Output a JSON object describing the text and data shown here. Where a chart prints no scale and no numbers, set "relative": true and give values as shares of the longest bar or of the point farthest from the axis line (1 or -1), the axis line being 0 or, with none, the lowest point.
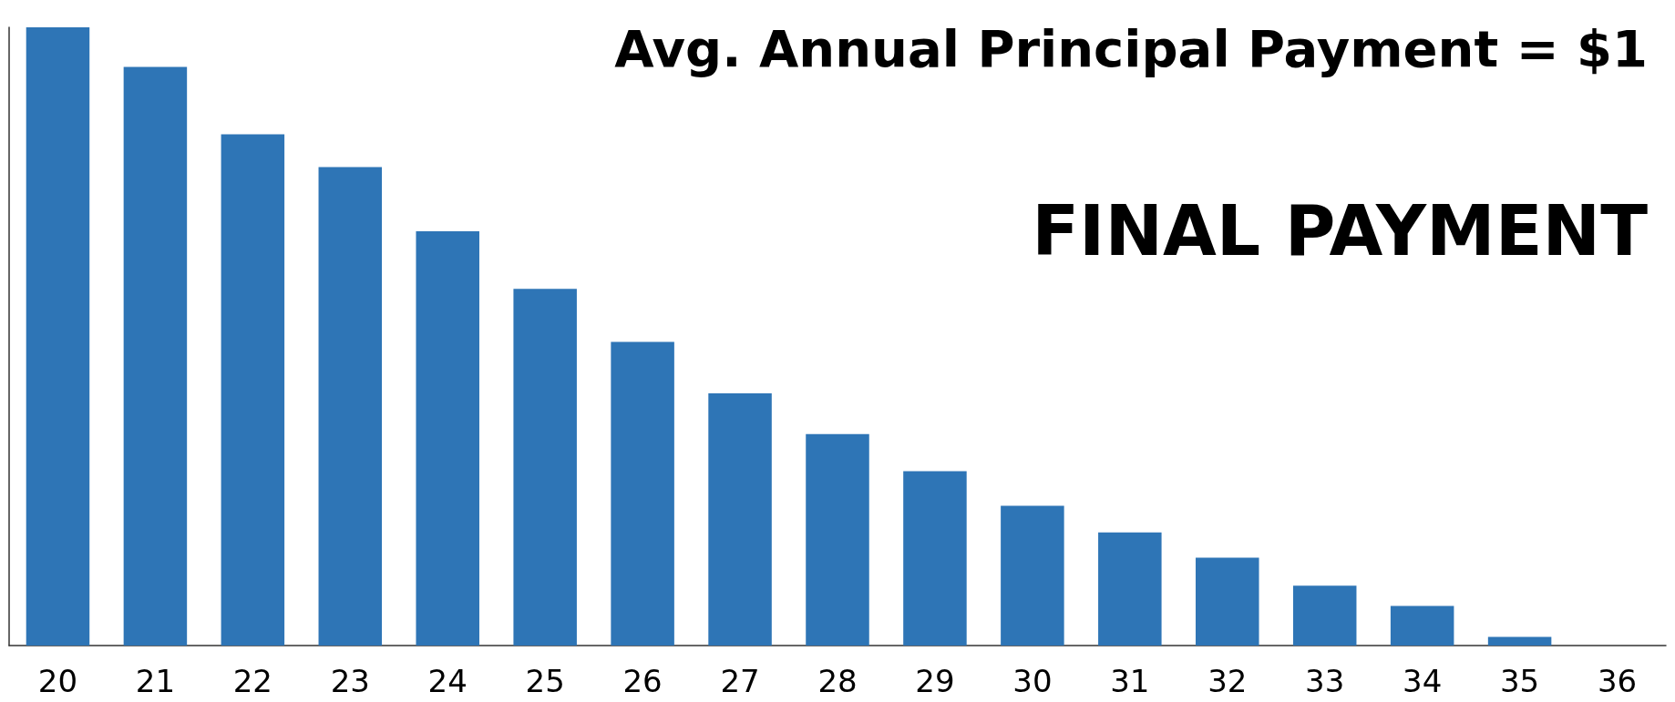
{
  "chart_data": {
    "type": "bar",
    "relative": true,
    "categories": [
      "20",
      "21",
      "22",
      "23",
      "24",
      "25",
      "26",
      "27",
      "28",
      "29",
      "30",
      "31",
      "32",
      "33",
      "34",
      "35",
      "36"
    ],
    "values": [
      1,
      0.936,
      0.827,
      0.774,
      0.67,
      0.577,
      0.491,
      0.408,
      0.342,
      0.282,
      0.226,
      0.183,
      0.142,
      0.097,
      0.064,
      0.014,
      0
    ],
    "color": "#2e75b6",
    "annotations": [
      "Avg. Annual Principal Payment = $1",
      "FINAL PAYMENT"
    ],
    "grid": false
  }
}
